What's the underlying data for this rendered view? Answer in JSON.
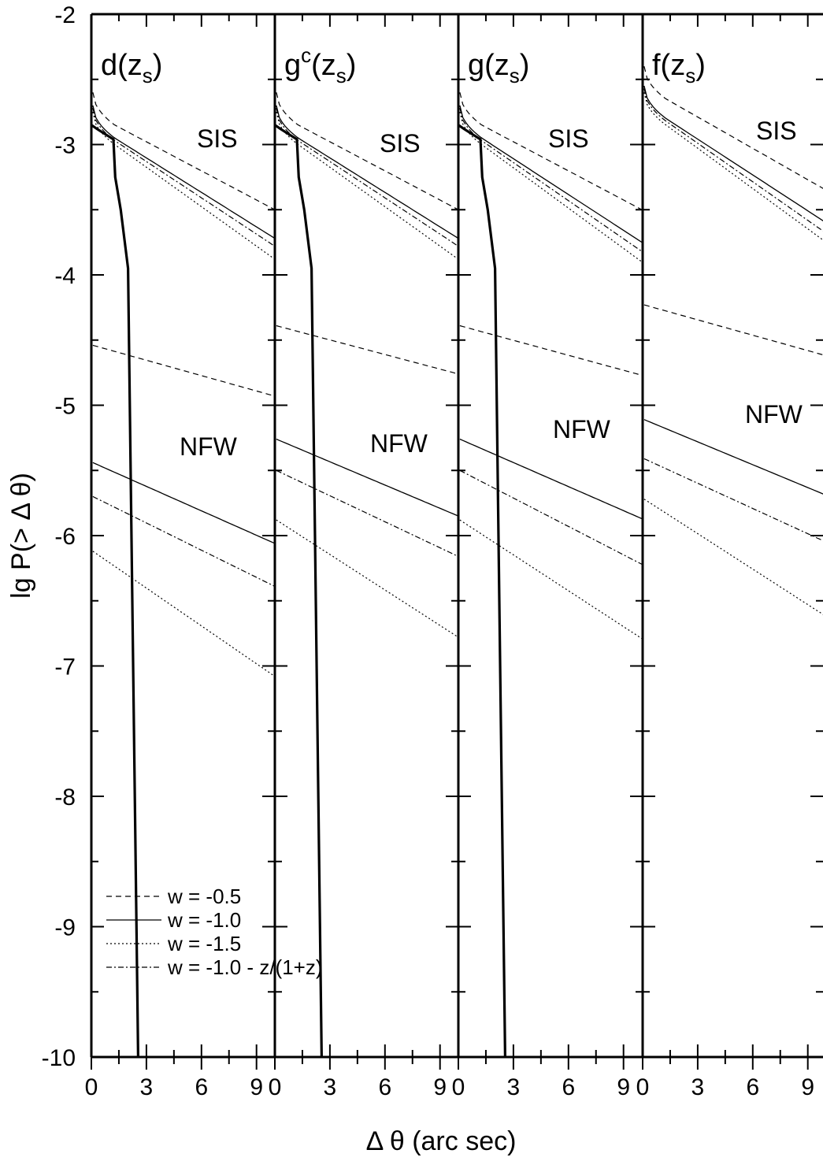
{
  "chart_data": {
    "type": "line",
    "xlabel": "Δ θ (arc sec)",
    "ylabel": "lg P(> Δ θ)",
    "xlim": [
      0,
      10
    ],
    "ylim": [
      -10,
      -2
    ],
    "y_ticks": [
      "-10",
      "-9",
      "-8",
      "-7",
      "-6",
      "-5",
      "-4",
      "-3",
      "-2"
    ],
    "x_tick_labels": [
      [
        "0",
        "3",
        "6",
        "9"
      ],
      [
        "0",
        "3",
        "6",
        "9"
      ],
      [
        "0",
        "3",
        "6",
        "9"
      ],
      [
        "0",
        "3",
        "6",
        "9"
      ]
    ],
    "legend": {
      "placement": "lower-left of first panel",
      "entries": [
        {
          "label": "w = -0.5",
          "style": "dashed"
        },
        {
          "label": "w = -1.0",
          "style": "solid"
        },
        {
          "label": "w = -1.5",
          "style": "dotted"
        },
        {
          "label": "w = -1.0 - z/(1+z)",
          "style": "dash-dot"
        }
      ]
    },
    "panels": [
      {
        "title_main": "d(z",
        "title_sub": "s",
        "title_sup": "",
        "title_end": ")",
        "labels": {
          "sis": "SIS",
          "nfw": "NFW"
        },
        "sis": {
          "w-0.5": {
            "start": -2.6,
            "end": -3.5
          },
          "w-1.0": {
            "start": -2.7,
            "end": -3.72
          },
          "w-1.5": {
            "start": -2.75,
            "end": -3.88
          },
          "w-var": {
            "start": -2.72,
            "end": -3.78
          }
        },
        "nfw": {
          "w-0.5": {
            "start": -4.54,
            "end": -4.93
          },
          "w-1.0": {
            "start": -5.44,
            "end": -6.06
          },
          "w-1.5": {
            "start": -6.12,
            "end": -7.08
          },
          "w-var": {
            "start": -5.7,
            "end": -6.39
          }
        },
        "observed": [
          [
            0,
            -2.85
          ],
          [
            0.3,
            -2.88
          ],
          [
            1.2,
            -2.96
          ],
          [
            1.3,
            -3.25
          ],
          [
            1.6,
            -3.5
          ],
          [
            2.0,
            -3.95
          ],
          [
            2.55,
            -10
          ]
        ]
      },
      {
        "title_main": "g",
        "title_sub": "s",
        "title_sup": "c",
        "title_end": ")",
        "labels": {
          "sis": "SIS",
          "nfw": "NFW"
        },
        "sis": {
          "w-0.5": {
            "start": -2.6,
            "end": -3.5
          },
          "w-1.0": {
            "start": -2.7,
            "end": -3.72
          },
          "w-1.5": {
            "start": -2.75,
            "end": -3.88
          },
          "w-var": {
            "start": -2.72,
            "end": -3.78
          }
        },
        "nfw": {
          "w-0.5": {
            "start": -4.39,
            "end": -4.76
          },
          "w-1.0": {
            "start": -5.26,
            "end": -5.85
          },
          "w-1.5": {
            "start": -5.88,
            "end": -6.78
          },
          "w-var": {
            "start": -5.5,
            "end": -6.16
          }
        },
        "observed": [
          [
            0,
            -2.85
          ],
          [
            0.3,
            -2.88
          ],
          [
            1.2,
            -2.96
          ],
          [
            1.3,
            -3.25
          ],
          [
            1.6,
            -3.5
          ],
          [
            2.0,
            -3.95
          ],
          [
            2.55,
            -10
          ]
        ]
      },
      {
        "title_main": "g(z",
        "title_sub": "s",
        "title_sup": "",
        "title_end": ")",
        "labels": {
          "sis": "SIS",
          "nfw": "NFW"
        },
        "sis": {
          "w-0.5": {
            "start": -2.6,
            "end": -3.5
          },
          "w-1.0": {
            "start": -2.7,
            "end": -3.75
          },
          "w-1.5": {
            "start": -2.75,
            "end": -3.9
          },
          "w-var": {
            "start": -2.72,
            "end": -3.82
          }
        },
        "nfw": {
          "w-0.5": {
            "start": -4.39,
            "end": -4.77
          },
          "w-1.0": {
            "start": -5.26,
            "end": -5.87
          },
          "w-1.5": {
            "start": -5.88,
            "end": -6.79
          },
          "w-var": {
            "start": -5.5,
            "end": -6.22
          }
        },
        "observed": [
          [
            0,
            -2.85
          ],
          [
            0.3,
            -2.88
          ],
          [
            1.2,
            -2.96
          ],
          [
            1.3,
            -3.25
          ],
          [
            1.6,
            -3.5
          ],
          [
            2.0,
            -3.95
          ],
          [
            2.55,
            -10
          ]
        ]
      },
      {
        "title_main": "f(z",
        "title_sub": "s",
        "title_sup": "",
        "title_end": ")",
        "labels": {
          "sis": "SIS",
          "nfw": "NFW"
        },
        "sis": {
          "w-0.5": {
            "start": -2.4,
            "end": -3.35
          },
          "w-1.0": {
            "start": -2.55,
            "end": -3.6
          },
          "w-1.5": {
            "start": -2.6,
            "end": -3.75
          },
          "w-var": {
            "start": -2.57,
            "end": -3.68
          }
        },
        "nfw": {
          "w-0.5": {
            "start": -4.23,
            "end": -4.62
          },
          "w-1.0": {
            "start": -5.11,
            "end": -5.69
          },
          "w-1.5": {
            "start": -5.72,
            "end": -6.62
          },
          "w-var": {
            "start": -5.41,
            "end": -6.05
          }
        },
        "observed": []
      }
    ]
  }
}
